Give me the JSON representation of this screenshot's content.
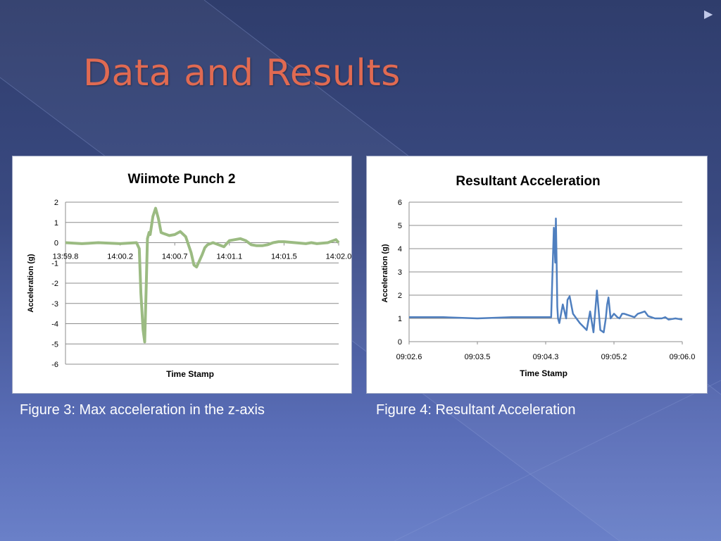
{
  "slide": {
    "title": "Data and Results",
    "caption_left": "Figure 3: Max acceleration in the z-axis",
    "caption_right": "Figure 4: Resultant Acceleration",
    "nav_icon": "triangle-right-icon"
  },
  "chart_data": [
    {
      "type": "line",
      "title": "Wiimote Punch 2",
      "xlabel": "Time Stamp",
      "ylabel": "Acceleration (g)",
      "ylim": [
        -6,
        2
      ],
      "yticks": [
        "2",
        "1",
        "0",
        "-1",
        "-2",
        "-3",
        "-4",
        "-5",
        "-6"
      ],
      "xticks": [
        "13:59.8",
        "14:00.2",
        "14:00.7",
        "14:01.1",
        "14:01.5",
        "14:02.0"
      ],
      "xlim": [
        0,
        5
      ],
      "grid": true,
      "line_color": "#9bbb82",
      "series": [
        {
          "x": [
            0,
            0.3,
            0.6,
            1.0,
            1.3,
            1.35,
            1.38,
            1.42,
            1.45,
            1.48,
            1.5,
            1.53,
            1.55,
            1.6,
            1.65,
            1.7,
            1.75,
            1.8,
            1.85,
            1.9,
            2.0,
            2.1,
            2.2,
            2.3,
            2.35,
            2.4,
            2.45,
            2.5,
            2.55,
            2.6,
            2.7,
            2.8,
            2.9,
            3.0,
            3.1,
            3.2,
            3.3,
            3.4,
            3.5,
            3.6,
            3.7,
            3.8,
            3.9,
            4.0,
            4.2,
            4.4,
            4.5,
            4.6,
            4.8,
            4.95,
            5.0
          ],
          "values": [
            0,
            -0.05,
            0,
            -0.05,
            0,
            -0.3,
            -2.5,
            -4.3,
            -4.9,
            -2.0,
            0.2,
            0.5,
            0.4,
            1.3,
            1.7,
            1.2,
            0.5,
            0.45,
            0.4,
            0.35,
            0.4,
            0.55,
            0.3,
            -0.5,
            -1.1,
            -1.2,
            -0.9,
            -0.6,
            -0.25,
            -0.1,
            0,
            -0.1,
            -0.2,
            0.1,
            0.15,
            0.2,
            0.1,
            -0.1,
            -0.15,
            -0.15,
            -0.1,
            0,
            0.05,
            0.05,
            0.0,
            -0.05,
            0.0,
            -0.05,
            0.0,
            0.15,
            0.0
          ]
        }
      ]
    },
    {
      "type": "line",
      "title": "Resultant Acceleration",
      "xlabel": "Time Stamp",
      "ylabel": "Acceleration (g)",
      "ylim": [
        0,
        6
      ],
      "yticks": [
        "6",
        "5",
        "4",
        "3",
        "2",
        "1",
        "0"
      ],
      "xticks": [
        "09:02.6",
        "09:03.5",
        "09:04.3",
        "09:05.2",
        "09:06.0"
      ],
      "xlim": [
        0,
        4
      ],
      "grid": true,
      "line_color": "#4f7fbf",
      "series": [
        {
          "x": [
            0,
            0.5,
            1.0,
            1.5,
            2.0,
            2.08,
            2.1,
            2.12,
            2.14,
            2.15,
            2.16,
            2.17,
            2.18,
            2.2,
            2.25,
            2.3,
            2.32,
            2.35,
            2.4,
            2.45,
            2.5,
            2.6,
            2.65,
            2.7,
            2.75,
            2.8,
            2.85,
            2.88,
            2.9,
            2.92,
            2.95,
            3.0,
            3.05,
            3.08,
            3.1,
            3.12,
            3.15,
            3.2,
            3.25,
            3.3,
            3.35,
            3.4,
            3.45,
            3.5,
            3.55,
            3.6,
            3.7,
            3.75,
            3.8,
            3.9,
            4.0
          ],
          "values": [
            1.05,
            1.05,
            1.0,
            1.05,
            1.05,
            1.05,
            3.0,
            4.9,
            3.4,
            5.3,
            3.5,
            1.5,
            1.0,
            0.8,
            1.6,
            1.0,
            1.8,
            1.95,
            1.2,
            1.0,
            0.8,
            0.5,
            1.3,
            0.4,
            2.2,
            0.5,
            0.4,
            1.0,
            1.6,
            1.9,
            1.0,
            1.2,
            1.05,
            1.0,
            1.1,
            1.2,
            1.2,
            1.15,
            1.1,
            1.05,
            1.2,
            1.25,
            1.3,
            1.1,
            1.05,
            1.0,
            1.0,
            1.05,
            0.95,
            1.0,
            0.95
          ]
        }
      ]
    }
  ]
}
